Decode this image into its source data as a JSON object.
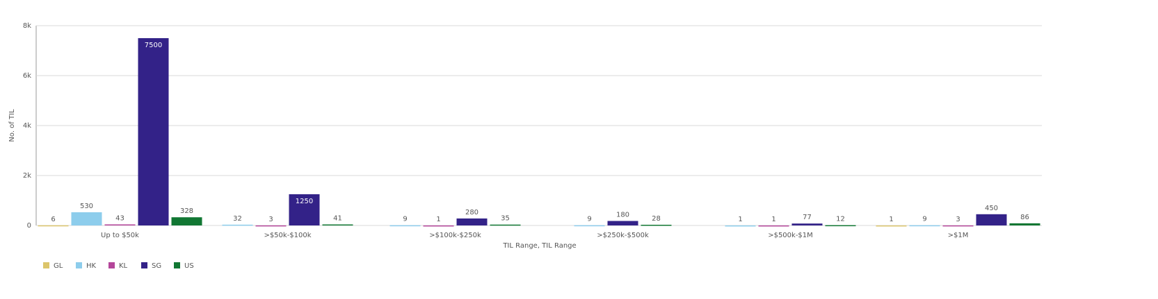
{
  "chart_data": {
    "type": "bar",
    "y_label": "No. of TIL",
    "x_label": "TIL Range, TIL Range",
    "categories": [
      "Up to $50k",
      ">$50k-$100k",
      ">$100k-$250k",
      ">$250k-$500k",
      ">$500k-$1M",
      ">$1M"
    ],
    "series": [
      {
        "name": "GL",
        "color": "#dcc56b",
        "values": [
          6,
          null,
          null,
          null,
          null,
          1
        ]
      },
      {
        "name": "HK",
        "color": "#8dcdec",
        "values": [
          530,
          32,
          9,
          9,
          1,
          9
        ]
      },
      {
        "name": "KL",
        "color": "#b4469a",
        "values": [
          43,
          3,
          1,
          null,
          1,
          3
        ]
      },
      {
        "name": "SG",
        "color": "#332288",
        "values": [
          7500,
          1250,
          280,
          180,
          77,
          450
        ]
      },
      {
        "name": "US",
        "color": "#117733",
        "values": [
          328,
          41,
          35,
          28,
          12,
          86
        ]
      }
    ],
    "ylim": [
      0,
      8000
    ],
    "yticks": [
      0,
      {
        "value": 2000,
        "label": "2k"
      },
      {
        "value": 4000,
        "label": "4k"
      },
      {
        "value": 6000,
        "label": "6k"
      },
      {
        "value": 8000,
        "label": "8k"
      }
    ],
    "grid": true
  }
}
